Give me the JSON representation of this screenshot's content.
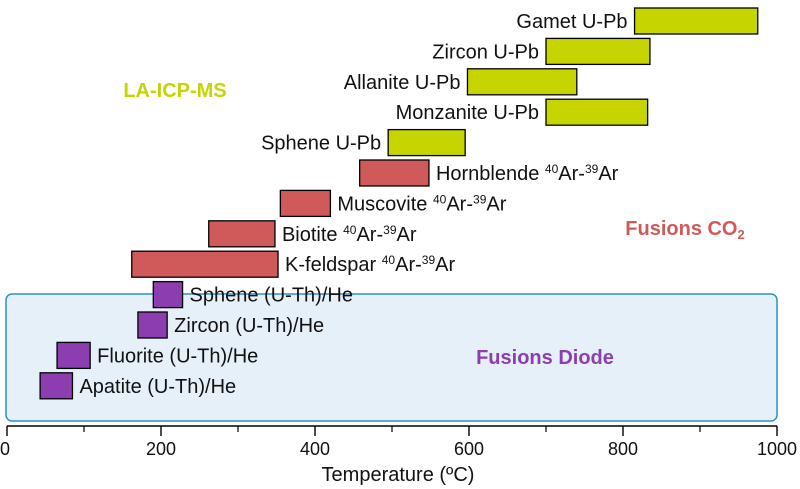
{
  "chart_data": {
    "type": "bar",
    "orientation": "horizontal-range",
    "title": "",
    "xlabel": "Temperature (ºC)",
    "ylabel": "",
    "xlim": [
      0,
      1000
    ],
    "x_ticks": [
      0,
      200,
      400,
      600,
      800,
      1000
    ],
    "x_minor_step": 100,
    "grid": false,
    "groups": [
      {
        "key": "laicpms",
        "name": "LA-ICP-MS",
        "color": "#c6d400",
        "stroke": "#000000"
      },
      {
        "key": "co2",
        "name": "Fusions CO",
        "name_sub": "2",
        "color": "#d05a5a",
        "stroke": "#000000"
      },
      {
        "key": "diode",
        "name": "Fusions Diode",
        "color": "#8c3eb0",
        "stroke": "#000000",
        "panel_fill": "#e6f0f9",
        "panel_stroke": "#2f8fca"
      }
    ],
    "ranges": [
      {
        "name": "Gamet U-Pb",
        "group": "laicpms",
        "min": 815,
        "max": 975,
        "label_side": "left",
        "label_parts": [
          {
            "t": "Gamet U-Pb"
          }
        ]
      },
      {
        "name": "Zircon U-Pb",
        "group": "laicpms",
        "min": 700,
        "max": 835,
        "label_side": "left",
        "label_parts": [
          {
            "t": "Zircon U-Pb"
          }
        ]
      },
      {
        "name": "Allanite U-Pb",
        "group": "laicpms",
        "min": 598,
        "max": 740,
        "label_side": "left",
        "label_parts": [
          {
            "t": "Allanite U-Pb"
          }
        ]
      },
      {
        "name": "Monzanite U-Pb",
        "group": "laicpms",
        "min": 700,
        "max": 832,
        "label_side": "left",
        "label_parts": [
          {
            "t": "Monzanite U-Pb"
          }
        ]
      },
      {
        "name": "Sphene U-Pb",
        "group": "laicpms",
        "min": 495,
        "max": 595,
        "label_side": "left",
        "label_parts": [
          {
            "t": "Sphene U-Pb"
          }
        ]
      },
      {
        "name": "Hornblende 40Ar-39Ar",
        "group": "co2",
        "min": 458,
        "max": 548,
        "label_side": "right",
        "label_parts": [
          {
            "t": "Hornblende "
          },
          {
            "t": "40",
            "sup": true
          },
          {
            "t": "Ar-"
          },
          {
            "t": "39",
            "sup": true
          },
          {
            "t": "Ar"
          }
        ]
      },
      {
        "name": "Muscovite 40Ar-39Ar",
        "group": "co2",
        "min": 355,
        "max": 420,
        "label_side": "right",
        "label_parts": [
          {
            "t": "Muscovite "
          },
          {
            "t": "40",
            "sup": true
          },
          {
            "t": "Ar-"
          },
          {
            "t": "39",
            "sup": true
          },
          {
            "t": "Ar"
          }
        ]
      },
      {
        "name": "Biotite 40Ar-39Ar",
        "group": "co2",
        "min": 262,
        "max": 348,
        "label_side": "right",
        "label_parts": [
          {
            "t": "Biotite "
          },
          {
            "t": "40",
            "sup": true
          },
          {
            "t": "Ar-"
          },
          {
            "t": "39",
            "sup": true
          },
          {
            "t": "Ar"
          }
        ]
      },
      {
        "name": "K-feldspar 40Ar-39Ar",
        "group": "co2",
        "min": 162,
        "max": 352,
        "label_side": "right",
        "label_parts": [
          {
            "t": "K-feldspar "
          },
          {
            "t": "40",
            "sup": true
          },
          {
            "t": "Ar-"
          },
          {
            "t": "39",
            "sup": true
          },
          {
            "t": "Ar"
          }
        ]
      },
      {
        "name": "Sphene (U-Th)/He",
        "group": "diode",
        "min": 190,
        "max": 228,
        "label_side": "right",
        "label_parts": [
          {
            "t": "Sphene (U-Th)/He"
          }
        ]
      },
      {
        "name": "Zircon (U-Th)/He",
        "group": "diode",
        "min": 170,
        "max": 208,
        "label_side": "right",
        "label_parts": [
          {
            "t": "Zircon (U-Th)/He"
          }
        ]
      },
      {
        "name": "Fluorite (U-Th)/He",
        "group": "diode",
        "min": 65,
        "max": 108,
        "label_side": "right",
        "label_parts": [
          {
            "t": "Fluorite (U-Th)/He"
          }
        ]
      },
      {
        "name": "Apatite (U-Th)/He",
        "group": "diode",
        "min": 43,
        "max": 85,
        "label_side": "right",
        "label_parts": [
          {
            "t": "Apatite (U-Th)/He"
          }
        ]
      }
    ]
  }
}
